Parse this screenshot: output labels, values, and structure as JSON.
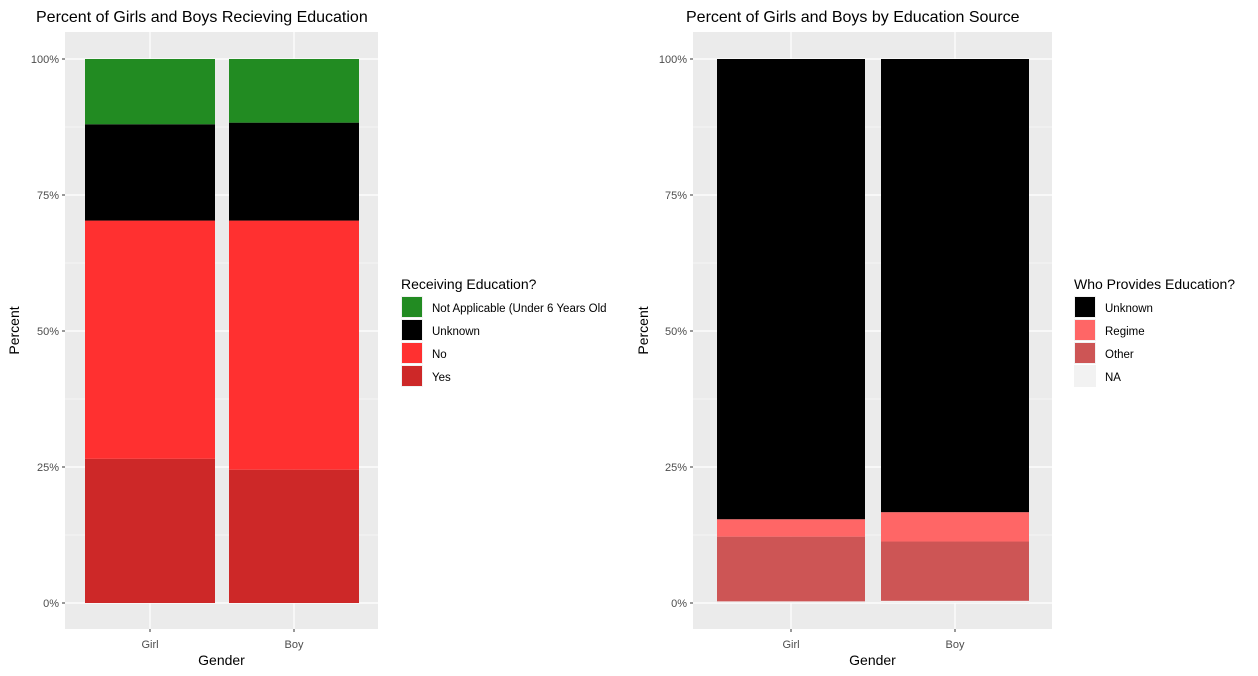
{
  "chart_data": [
    {
      "type": "bar",
      "stacked": true,
      "title": "Percent of Girls and Boys Recieving Education",
      "xlabel": "Gender",
      "ylabel": "Percent",
      "categories": [
        "Girl",
        "Boy"
      ],
      "ylim": [
        0,
        100
      ],
      "yticks": [
        0,
        25,
        50,
        75,
        100
      ],
      "ytick_labels": [
        "0%",
        "25%",
        "50%",
        "75%",
        "100%"
      ],
      "grid": true,
      "legend_position": "right",
      "legend_title": "Receiving Education?",
      "series": [
        {
          "name": "Yes",
          "color": "#cd2828",
          "values": [
            26.5,
            24.5
          ]
        },
        {
          "name": "No",
          "color": "#ff3030",
          "values": [
            43.8,
            45.8
          ]
        },
        {
          "name": "Unknown",
          "color": "#000000",
          "values": [
            17.7,
            18.0
          ]
        },
        {
          "name": "Not Applicable (Under 6 Years Old",
          "color": "#228b22",
          "values": [
            12.0,
            11.7
          ]
        }
      ],
      "legend_order": [
        "Not Applicable (Under 6 Years Old",
        "Unknown",
        "No",
        "Yes"
      ]
    },
    {
      "type": "bar",
      "stacked": true,
      "title": "Percent of Girls and Boys by Education Source",
      "xlabel": "Gender",
      "ylabel": "Percent",
      "categories": [
        "Girl",
        "Boy"
      ],
      "ylim": [
        0,
        100
      ],
      "yticks": [
        0,
        25,
        50,
        75,
        100
      ],
      "ytick_labels": [
        "0%",
        "25%",
        "50%",
        "75%",
        "100%"
      ],
      "grid": true,
      "legend_position": "right",
      "legend_title": "Who Provides Education?",
      "series": [
        {
          "name": "NA",
          "color": "#f2f2f2",
          "values": [
            0.3,
            0.4
          ]
        },
        {
          "name": "Other",
          "color": "#cd5555",
          "values": [
            11.9,
            10.9
          ]
        },
        {
          "name": "Regime",
          "color": "#ff6666",
          "values": [
            3.2,
            5.4
          ]
        },
        {
          "name": "Unknown",
          "color": "#000000",
          "values": [
            84.6,
            83.3
          ]
        }
      ],
      "legend_order": [
        "Unknown",
        "Regime",
        "Other",
        "NA"
      ]
    }
  ]
}
